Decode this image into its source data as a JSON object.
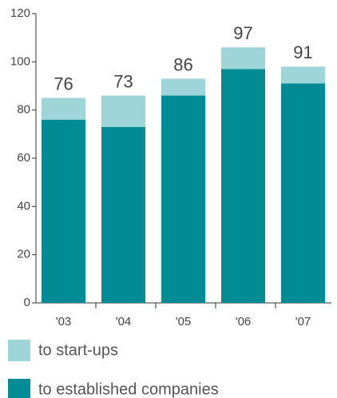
{
  "chart_data": {
    "type": "stacked-bar",
    "categories": [
      "'03",
      "'04",
      "'05",
      "'06",
      "'07"
    ],
    "series": [
      {
        "name": "to start-ups",
        "color": "#9dd5d8",
        "values": [
          9,
          13,
          7,
          9,
          7
        ]
      },
      {
        "name": "to established companies",
        "color": "#008b95",
        "values": [
          76,
          73,
          86,
          97,
          91
        ]
      }
    ],
    "ylim": [
      0,
      120
    ],
    "yticks": [
      0,
      20,
      40,
      60,
      80,
      100,
      120
    ]
  }
}
